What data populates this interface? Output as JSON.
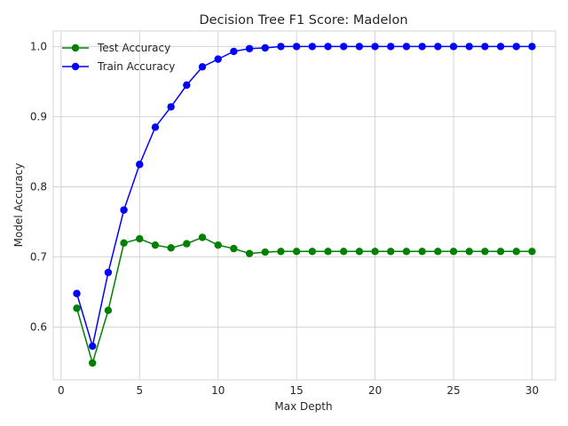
{
  "chart_data": {
    "type": "line",
    "title": "Decision Tree F1 Score: Madelon",
    "xlabel": "Max Depth",
    "ylabel": "Model Accuracy",
    "xlim": [
      -0.5,
      31.5
    ],
    "ylim": [
      0.525,
      1.022
    ],
    "xticks": [
      0,
      5,
      10,
      15,
      20,
      25,
      30
    ],
    "yticks": [
      0.6,
      0.7,
      0.8,
      0.9,
      1.0
    ],
    "ytick_labels": [
      "0.6",
      "0.7",
      "0.8",
      "0.9",
      "1.0"
    ],
    "grid": true,
    "legend_position": "top-left",
    "x": [
      1,
      2,
      3,
      4,
      5,
      6,
      7,
      8,
      9,
      10,
      11,
      12,
      13,
      14,
      15,
      16,
      17,
      18,
      19,
      20,
      21,
      22,
      23,
      24,
      25,
      26,
      27,
      28,
      29,
      30
    ],
    "series": [
      {
        "name": "Test Accuracy",
        "color": "#008000",
        "marker": "circle",
        "values": [
          0.627,
          0.549,
          0.624,
          0.72,
          0.726,
          0.717,
          0.713,
          0.719,
          0.728,
          0.717,
          0.712,
          0.705,
          0.707,
          0.708,
          0.708,
          0.708,
          0.708,
          0.708,
          0.708,
          0.708,
          0.708,
          0.708,
          0.708,
          0.708,
          0.708,
          0.708,
          0.708,
          0.708,
          0.708,
          0.708
        ]
      },
      {
        "name": "Train Accuracy",
        "color": "#0000ff",
        "marker": "circle",
        "values": [
          0.648,
          0.573,
          0.678,
          0.767,
          0.832,
          0.885,
          0.914,
          0.945,
          0.971,
          0.982,
          0.993,
          0.997,
          0.998,
          1.0,
          1.0,
          1.0,
          1.0,
          1.0,
          1.0,
          1.0,
          1.0,
          1.0,
          1.0,
          1.0,
          1.0,
          1.0,
          1.0,
          1.0,
          1.0,
          1.0
        ]
      }
    ]
  }
}
